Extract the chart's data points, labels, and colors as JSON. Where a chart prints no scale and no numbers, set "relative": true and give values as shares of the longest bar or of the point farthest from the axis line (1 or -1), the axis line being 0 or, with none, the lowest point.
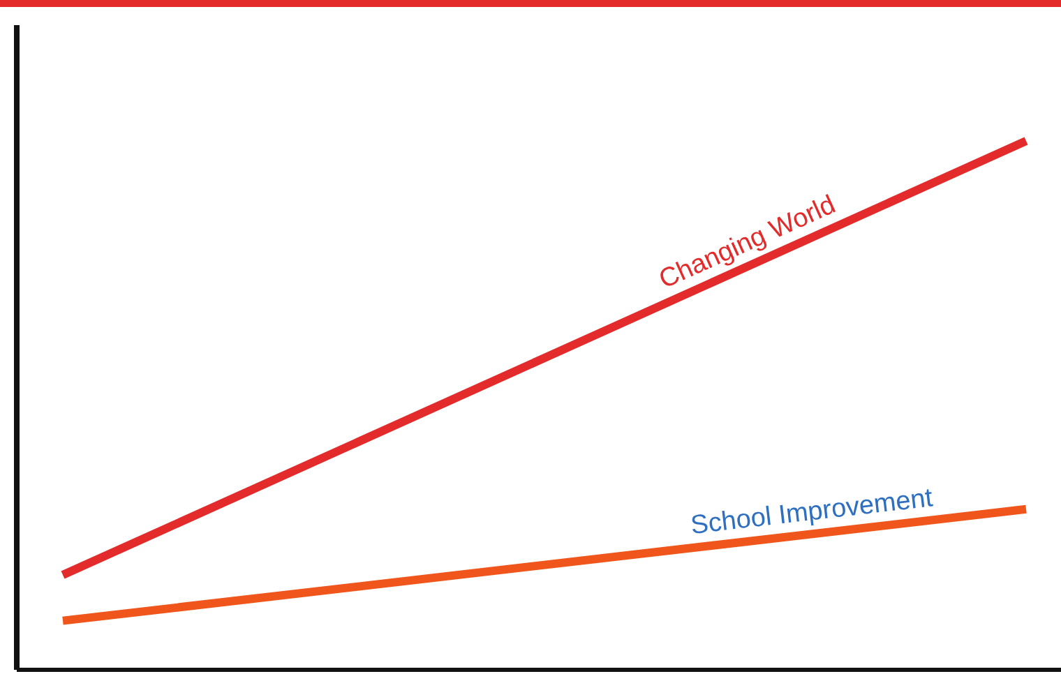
{
  "chart_data": {
    "type": "line",
    "relative": true,
    "categories": [
      null,
      null
    ],
    "legend": false,
    "marker": "none",
    "series": [
      {
        "name": "Changing World",
        "color": "#e32b2b",
        "values": [
          0.175,
          1
        ]
      },
      {
        "name": "School Improvement",
        "color": "#f0561c",
        "values": [
          0.088,
          0.3
        ]
      }
    ]
  }
}
